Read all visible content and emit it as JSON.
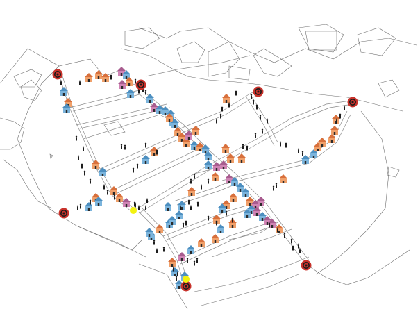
{
  "map": {
    "colors": {
      "orange": "#f0a06a",
      "orange_roof": "#d8703c",
      "blue": "#7bb4dc",
      "blue_roof": "#4d8fc0",
      "pink": "#cf83b4",
      "pink_roof": "#a85c8f",
      "target_ring": "#c8322b",
      "target_core": "#1b1b1b",
      "person": "#1d1d1d",
      "yellow_marker": "#f3f20f"
    },
    "icons": {
      "house": "house-icon",
      "person": "person-icon",
      "target": "target-icon",
      "marker": "yellow-marker"
    }
  }
}
